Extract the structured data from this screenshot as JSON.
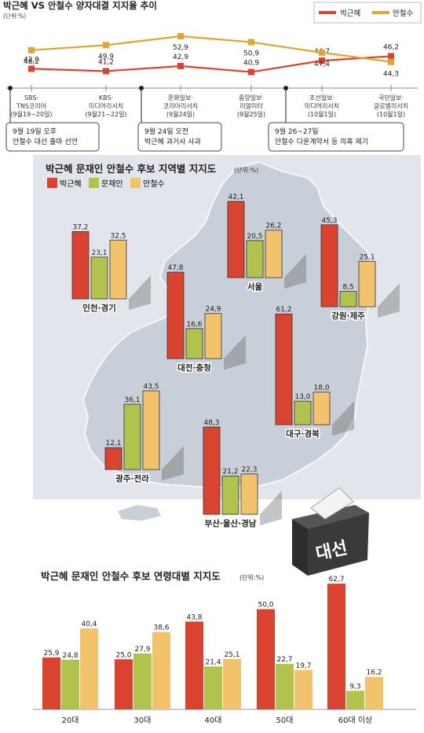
{
  "colors": {
    "park": "#d9432f",
    "moon": "#b2c34d",
    "ahn": "#f2c36b",
    "ahnLine": "#e0a531",
    "map": "#c8cfd8",
    "mapBg": "#e2e6ec",
    "box": "#3a3a3a"
  },
  "legend": {
    "park": "박근혜",
    "moon": "문재인",
    "ahn": "안철수"
  },
  "top": {
    "title": "박근혜 VS 안철수 양자대결 지지율 추이",
    "unit": "(단위:%)"
  },
  "regional": {
    "title": "박근혜 문재인 안철수 후보 지역별 지지도",
    "unit": "(단위:%)"
  },
  "age": {
    "title": "박근혜 문재인 안철수 후보 연령대별 지지도",
    "unit": "(단위:%)"
  },
  "ballot_label": "대선",
  "chart_data": [
    {
      "type": "line",
      "title": "박근혜 VS 안철수 양자대결 지지율 추이",
      "unit": "(단위:%)",
      "categories": [
        [
          "SBS·",
          "TNS코리아",
          "(9월19~20일)"
        ],
        [
          "KBS·",
          "미디어리서치",
          "(9월21~22일)"
        ],
        [
          "문화일보·",
          "코리아리서치",
          "(9월24일)"
        ],
        [
          "중앙일보·",
          "리얼미터",
          "(9월25일)"
        ],
        [
          "조선일보·",
          "미디어리서치",
          "(10월1일)"
        ],
        [
          "국민일보·",
          "글로벌리서치",
          "(10월1일)"
        ]
      ],
      "series": [
        {
          "name": "박근혜",
          "values": [
            42.0,
            41.2,
            42.9,
            40.9,
            44.7,
            46.2
          ],
          "labels": [
            "42,0",
            "41,2",
            "42,9",
            "40,9",
            "44,7",
            "46,2"
          ]
        },
        {
          "name": "안철수",
          "values": [
            48.2,
            49.9,
            52.9,
            50.9,
            47.4,
            44.3
          ],
          "labels": [
            "48,2",
            "49,9",
            "52,9",
            "50,9",
            "47,4",
            "44,3"
          ]
        }
      ],
      "annotations": [
        {
          "lines": [
            "9월 19일 오후",
            "안철수 대선 출마 선언"
          ]
        },
        {
          "lines": [
            "9월 24일 오전",
            "박근혜 과거사 사과"
          ]
        },
        {
          "lines": [
            "9월 26~27일",
            "안철수 다운계약서 등 의혹 제기"
          ]
        }
      ]
    },
    {
      "type": "bar",
      "title": "박근혜 문재인 안철수 후보 지역별 지지도",
      "unit": "(단위:%)",
      "categories": [
        "인천·경기",
        "서울",
        "대전·충청",
        "강원·제주",
        "대구·경북",
        "광주·전라",
        "부산·울산·경남"
      ],
      "series": [
        {
          "name": "박근혜",
          "values": [
            37.2,
            42.1,
            47.8,
            45.3,
            61.2,
            12.1,
            48.3
          ],
          "labels": [
            "37,2",
            "42,1",
            "47,8",
            "45,3",
            "61,2",
            "12,1",
            "48,3"
          ]
        },
        {
          "name": "문재인",
          "values": [
            23.1,
            20.5,
            16.6,
            8.5,
            13.0,
            36.1,
            21.2
          ],
          "labels": [
            "23,1",
            "20,5",
            "16,6",
            "8,5",
            "13,0",
            "36,1",
            "21,2"
          ]
        },
        {
          "name": "안철수",
          "values": [
            32.5,
            26.2,
            24.9,
            25.1,
            18.0,
            43.5,
            22.3
          ],
          "labels": [
            "32,5",
            "26,2",
            "24,9",
            "25,1",
            "18,0",
            "43,5",
            "22,3"
          ]
        }
      ]
    },
    {
      "type": "bar",
      "title": "박근혜 문재인 안철수 후보 연령대별 지지도",
      "unit": "(단위:%)",
      "categories": [
        "20대",
        "30대",
        "40대",
        "50대",
        "60대 이상"
      ],
      "series": [
        {
          "name": "박근혜",
          "values": [
            25.9,
            25.0,
            43.8,
            50.0,
            62.7
          ],
          "labels": [
            "25,9",
            "25,0",
            "43,8",
            "50,0",
            "62,7"
          ]
        },
        {
          "name": "문재인",
          "values": [
            24.8,
            27.9,
            21.4,
            22.7,
            9.3
          ],
          "labels": [
            "24,8",
            "27,9",
            "21,4",
            "22,7",
            "9,3"
          ]
        },
        {
          "name": "안철수",
          "values": [
            40.4,
            38.6,
            25.1,
            19.7,
            16.2
          ],
          "labels": [
            "40,4",
            "38,6",
            "25,1",
            "19,7",
            "16,2"
          ]
        }
      ]
    }
  ]
}
